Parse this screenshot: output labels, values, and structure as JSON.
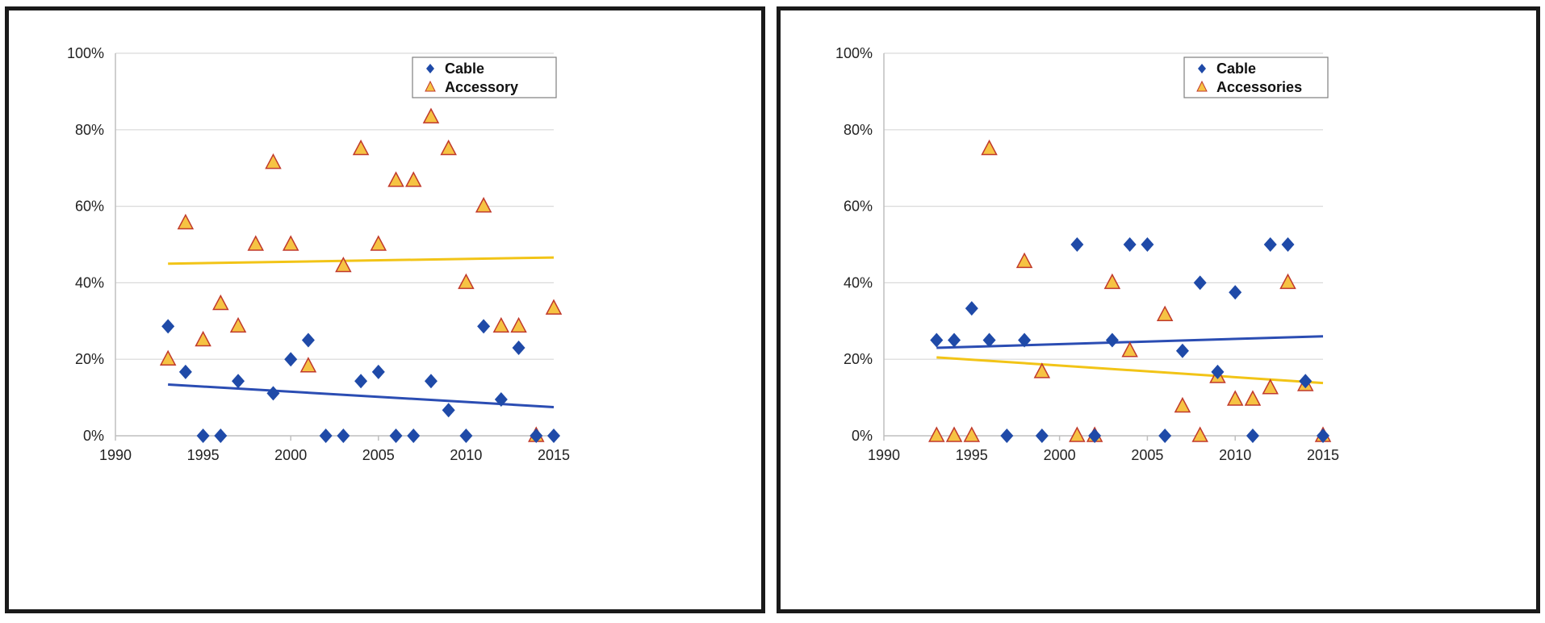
{
  "colors": {
    "cable": "#1f4aa8",
    "accessory_fill": "#f6c343",
    "accessory_stroke": "#c0392b",
    "cable_trend": "#2b4db3",
    "accessory_trend": "#f2c417",
    "grid": "#d9d9d9",
    "axis": "#bfbfbf"
  },
  "chart_data": [
    {
      "type": "scatter",
      "title": "",
      "xlabel": "",
      "ylabel": "",
      "xlim": [
        1990,
        2015
      ],
      "ylim": [
        0,
        100
      ],
      "x_ticks": [
        1990,
        1995,
        2000,
        2005,
        2010,
        2015
      ],
      "y_ticks": [
        0,
        20,
        40,
        60,
        80,
        100
      ],
      "y_tick_labels": [
        "0%",
        "20%",
        "40%",
        "60%",
        "80%",
        "100%"
      ],
      "legend_position": "top-right",
      "series": [
        {
          "name": "Cable",
          "marker": "diamond",
          "x": [
            1993,
            1994,
            1995,
            1996,
            1997,
            1999,
            2000,
            2001,
            2002,
            2003,
            2004,
            2005,
            2006,
            2007,
            2008,
            2009,
            2010,
            2011,
            2012,
            2013,
            2014,
            2015
          ],
          "y": [
            28.6,
            16.7,
            0,
            0,
            14.3,
            11.1,
            20,
            25,
            0,
            0,
            14.3,
            16.7,
            0,
            0,
            14.3,
            6.7,
            0,
            28.6,
            9.5,
            23,
            0,
            0
          ],
          "trend": [
            [
              1993,
              13.4
            ],
            [
              2015,
              7.5
            ]
          ]
        },
        {
          "name": "Accessory",
          "marker": "triangle",
          "x": [
            1993,
            1994,
            1995,
            1996,
            1997,
            1998,
            1999,
            2000,
            2001,
            2003,
            2004,
            2005,
            2006,
            2007,
            2008,
            2009,
            2010,
            2011,
            2012,
            2013,
            2014,
            2015
          ],
          "y": [
            20,
            55.6,
            25,
            34.5,
            28.6,
            50,
            71.4,
            50,
            18.2,
            44.4,
            75,
            50,
            66.7,
            66.7,
            83.3,
            75,
            40,
            60,
            28.6,
            28.6,
            0,
            33.3
          ],
          "trend": [
            [
              1993,
              45
            ],
            [
              2015,
              46.6
            ]
          ]
        }
      ]
    },
    {
      "type": "scatter",
      "title": "",
      "xlabel": "",
      "ylabel": "",
      "xlim": [
        1990,
        2015
      ],
      "ylim": [
        0,
        100
      ],
      "x_ticks": [
        1990,
        1995,
        2000,
        2005,
        2010,
        2015
      ],
      "y_ticks": [
        0,
        20,
        40,
        60,
        80,
        100
      ],
      "y_tick_labels": [
        "0%",
        "20%",
        "40%",
        "60%",
        "80%",
        "100%"
      ],
      "legend_position": "top-right",
      "series": [
        {
          "name": "Cable",
          "marker": "diamond",
          "x": [
            1993,
            1994,
            1995,
            1996,
            1997,
            1998,
            1999,
            2001,
            2002,
            2003,
            2004,
            2005,
            2006,
            2007,
            2008,
            2009,
            2010,
            2011,
            2012,
            2013,
            2014,
            2015
          ],
          "y": [
            25,
            25,
            33.3,
            25,
            0,
            25,
            0,
            50,
            0,
            25,
            50,
            50,
            0,
            22.2,
            40,
            16.7,
            37.5,
            0,
            50,
            50,
            14.3,
            0
          ],
          "trend": [
            [
              1993,
              23
            ],
            [
              2015,
              26
            ]
          ]
        },
        {
          "name": "Accessories",
          "marker": "triangle",
          "x": [
            1993,
            1994,
            1995,
            1996,
            1998,
            1999,
            2001,
            2002,
            2003,
            2004,
            2006,
            2007,
            2008,
            2009,
            2010,
            2011,
            2012,
            2013,
            2014,
            2015
          ],
          "y": [
            0,
            0,
            0,
            75,
            45.5,
            16.7,
            0,
            0,
            40,
            22.2,
            31.6,
            7.7,
            0,
            15.4,
            9.5,
            9.5,
            12.5,
            40,
            13.3,
            0
          ],
          "trend": [
            [
              1993,
              20.5
            ],
            [
              2015,
              13.8
            ]
          ]
        }
      ]
    }
  ]
}
